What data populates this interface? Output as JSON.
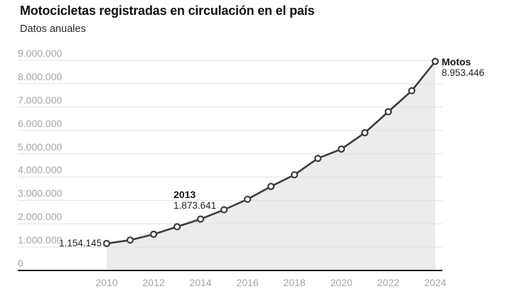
{
  "header": {
    "title": "Motocicletas registradas en circulación en el país",
    "subtitle": "Datos anuales"
  },
  "chart_data": {
    "type": "line",
    "title": "Motocicletas registradas en circulación en el país",
    "subtitle": "Datos anuales",
    "x": [
      2010,
      2011,
      2012,
      2013,
      2014,
      2015,
      2016,
      2017,
      2018,
      2019,
      2020,
      2021,
      2022,
      2023,
      2024
    ],
    "series": [
      {
        "name": "Motos",
        "values": [
          1154145,
          1300000,
          1550000,
          1873641,
          2200000,
          2600000,
          3050000,
          3600000,
          4100000,
          4800000,
          5200000,
          5900000,
          6800000,
          7700000,
          8953446
        ]
      }
    ],
    "ylim": [
      0,
      9000000
    ],
    "xlabel": "",
    "ylabel": "",
    "grid": "horizontal",
    "area": true,
    "legend_position": "end-of-line-label",
    "y_ticks": [
      {
        "value": 0,
        "label": "0"
      },
      {
        "value": 1000000,
        "label": "1.000.000"
      },
      {
        "value": 2000000,
        "label": "2.000.000"
      },
      {
        "value": 3000000,
        "label": "3.000.000"
      },
      {
        "value": 4000000,
        "label": "4.000.000"
      },
      {
        "value": 5000000,
        "label": "5.000.000"
      },
      {
        "value": 6000000,
        "label": "6.000.000"
      },
      {
        "value": 7000000,
        "label": "7.000.000"
      },
      {
        "value": 8000000,
        "label": "8.000.000"
      },
      {
        "value": 9000000,
        "label": "9.000.000"
      }
    ],
    "x_ticks": [
      {
        "value": 2010,
        "label": "2010"
      },
      {
        "value": 2012,
        "label": "2012"
      },
      {
        "value": 2014,
        "label": "2014"
      },
      {
        "value": 2016,
        "label": "2016"
      },
      {
        "value": 2018,
        "label": "2018"
      },
      {
        "value": 2020,
        "label": "2020"
      },
      {
        "value": 2022,
        "label": "2022"
      },
      {
        "value": 2024,
        "label": "2024"
      }
    ],
    "annotations": [
      {
        "year": 2010,
        "title": "",
        "value_label": "1.154.145",
        "placement": "left"
      },
      {
        "year": 2013,
        "title": "2013",
        "value_label": "1.873.641",
        "placement": "above-left"
      },
      {
        "year": 2024,
        "title": "Motos",
        "value_label": "8.953.446",
        "placement": "right"
      }
    ],
    "colors": {
      "line": "#3d3d3d",
      "marker_fill": "#ffffff",
      "marker_stroke": "#3d3d3d",
      "area_fill": "#ececec",
      "gridline": "#e0e0e0",
      "axis_line": "#1a1a1a",
      "tick_label": "#a4a4a4",
      "title_text": "#121212"
    }
  }
}
